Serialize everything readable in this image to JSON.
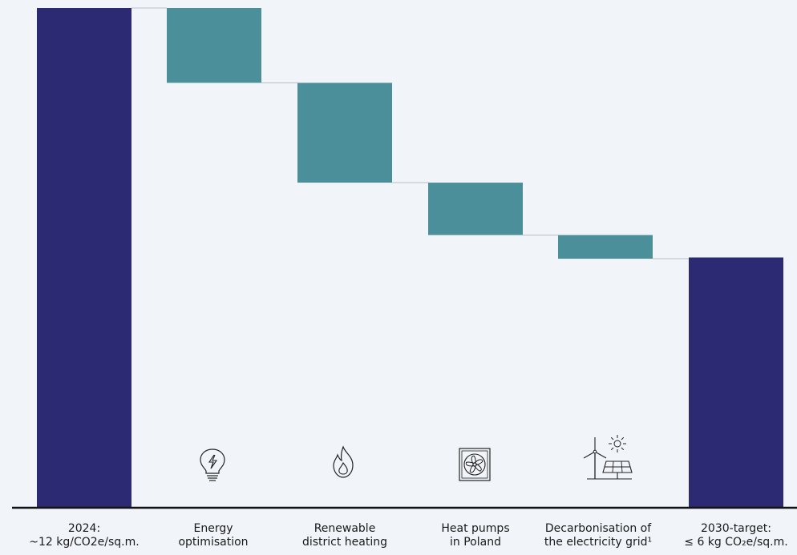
{
  "chart_data": {
    "type": "bar",
    "subtype": "waterfall",
    "categories": [
      [
        "2024:",
        "~12 kg/CO2e/sq.m."
      ],
      [
        "Energy",
        "optimisation"
      ],
      [
        "Renewable",
        "district heating"
      ],
      [
        "Heat pumps",
        "in Poland"
      ],
      [
        "Decarbonisation of",
        "the electricity grid¹"
      ],
      [
        "2030-target:",
        "≤ 6 kg CO₂e/sq.m."
      ]
    ],
    "bars": [
      {
        "kind": "total",
        "start": 0,
        "end": 12
      },
      {
        "kind": "reduction",
        "start": 12,
        "end": 10.2
      },
      {
        "kind": "reduction",
        "start": 10.2,
        "end": 7.8
      },
      {
        "kind": "reduction",
        "start": 7.8,
        "end": 6.54
      },
      {
        "kind": "reduction",
        "start": 6.54,
        "end": 5.97
      },
      {
        "kind": "total",
        "start": 0,
        "end": 6
      }
    ],
    "icons": [
      null,
      "lightbulb-icon",
      "flame-icon",
      "heat-pump-fan-icon",
      "wind-solar-icon",
      null
    ],
    "colors": {
      "total": "#2b2a73",
      "reduction": "#4a8f9a",
      "connector": "#b9bfc6",
      "baseline": "#111111",
      "background": "#f1f4f8"
    },
    "ylim": [
      0,
      12
    ],
    "grid": false
  }
}
